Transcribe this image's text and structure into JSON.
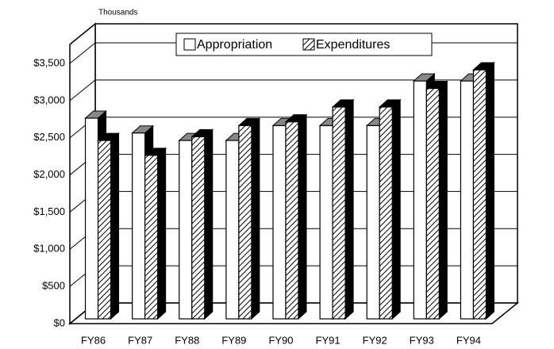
{
  "chart_data": {
    "type": "bar3d",
    "y_axis_label": "Thousands",
    "categories": [
      "FY86",
      "FY87",
      "FY88",
      "FY89",
      "FY90",
      "FY91",
      "FY92",
      "FY93",
      "FY94"
    ],
    "series": [
      {
        "name": "Appropriation",
        "color": "#ffffff",
        "values": [
          2700,
          2500,
          2400,
          2400,
          2600,
          2600,
          2600,
          3200,
          3200
        ]
      },
      {
        "name": "Expenditures",
        "color": "hatch",
        "values": [
          2400,
          2200,
          2450,
          2600,
          2650,
          2850,
          2850,
          3100,
          3350
        ]
      }
    ],
    "ylim": [
      0,
      3500
    ],
    "yticks": [
      {
        "value": 0,
        "label": "$0"
      },
      {
        "value": 500,
        "label": "$500"
      },
      {
        "value": 1000,
        "label": "$1,000"
      },
      {
        "value": 1500,
        "label": "$1,500"
      },
      {
        "value": 2000,
        "label": "$2,000"
      },
      {
        "value": 2500,
        "label": "$2,500"
      },
      {
        "value": 3000,
        "label": "$3,000"
      },
      {
        "value": 3500,
        "label": "$3,500"
      }
    ],
    "grid": true
  }
}
